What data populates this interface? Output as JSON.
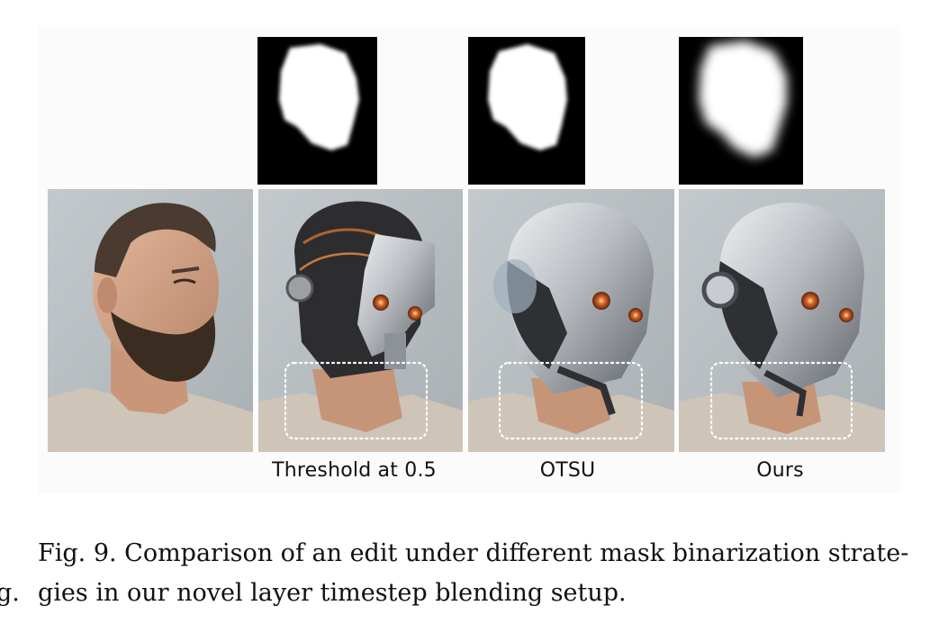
{
  "figure": {
    "masks": [
      {
        "method": "Threshold at 0.5",
        "style": "hard-edge"
      },
      {
        "method": "OTSU",
        "style": "hard-edge"
      },
      {
        "method": "Ours",
        "style": "soft-edge"
      }
    ],
    "photos": [
      {
        "subject": "original-portrait"
      },
      {
        "subject": "robot-edit-threshold"
      },
      {
        "subject": "robot-edit-otsu"
      },
      {
        "subject": "robot-edit-ours"
      }
    ],
    "labels": {
      "threshold": "Threshold at 0.5",
      "otsu": "OTSU",
      "ours": "Ours"
    }
  },
  "caption": {
    "line1": "Fig. 9.  Comparison of an edit under different mask binarization strate-",
    "line2": "gies in our novel layer timestep blending setup.",
    "left_fragment": "g."
  },
  "colors": {
    "background": "#ffffff",
    "photo_bg": "#b9c0c3",
    "mask_bg": "#000000",
    "mask_fg": "#ffffff"
  }
}
